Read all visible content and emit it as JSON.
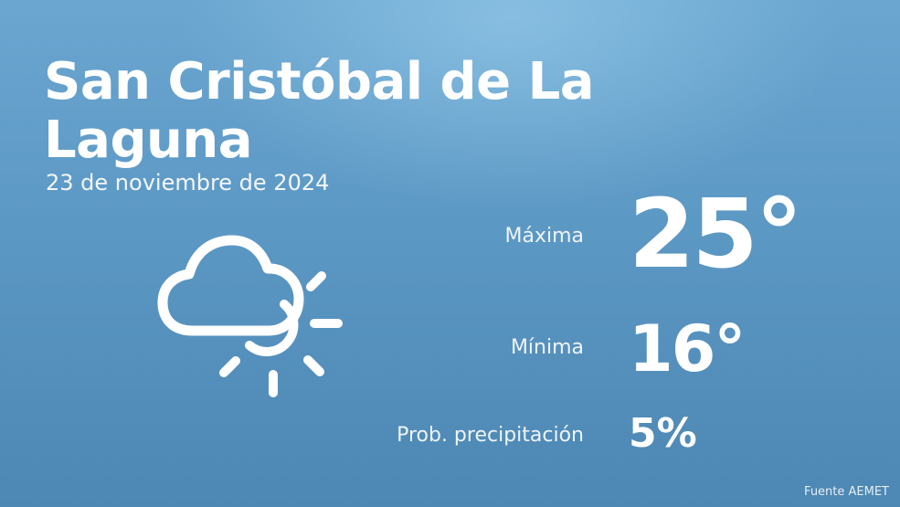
{
  "location": {
    "city": "San Cristóbal de La Laguna",
    "date": "23 de noviembre de 2024"
  },
  "weather": {
    "icon": "cloud-sun-icon",
    "max_label": "Máxima",
    "max_value": "25°",
    "min_label": "Mínima",
    "min_value": "16°",
    "precip_label": "Prob. precipitación",
    "precip_value": "5%"
  },
  "footer": {
    "source": "Fuente AEMET"
  },
  "colors": {
    "background_top": "#6aa6d0",
    "background_bottom": "#4d87b3",
    "text": "#ffffff"
  }
}
